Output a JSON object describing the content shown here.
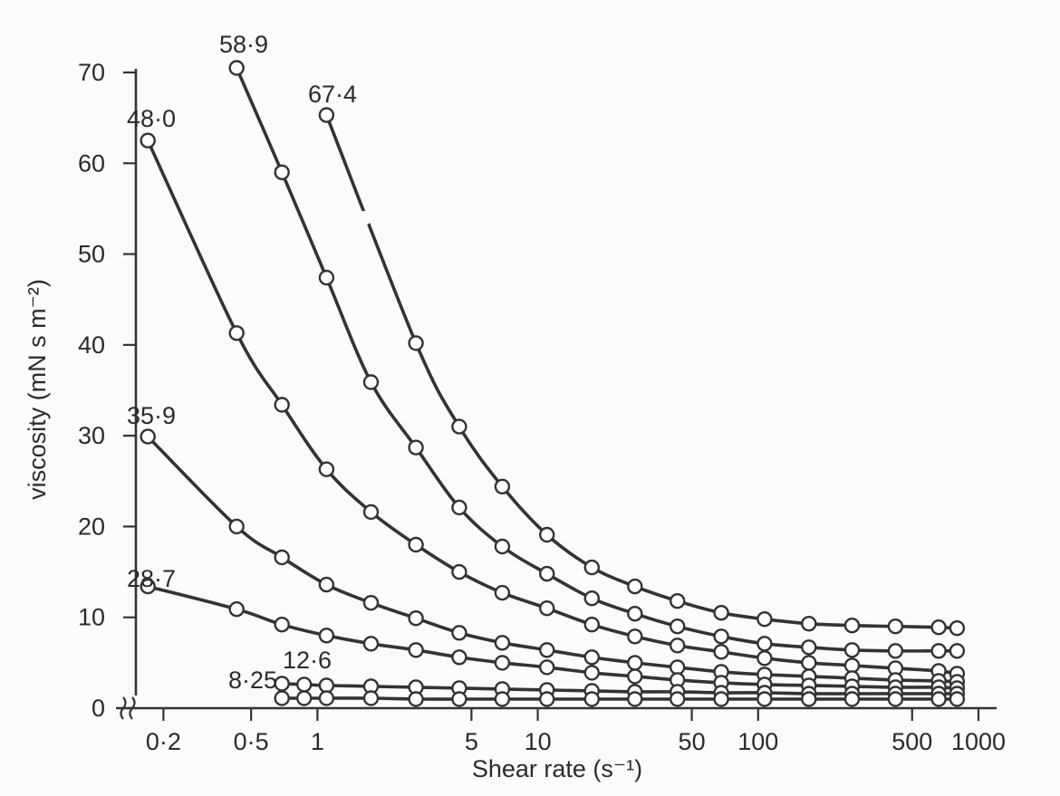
{
  "chart_data": {
    "type": "line",
    "x_scale": "log",
    "xlabel": "Shear rate (s⁻¹)",
    "ylabel": "viscosity (mN s m⁻²)",
    "xlim": [
      0.15,
      1000
    ],
    "ylim": [
      0,
      70
    ],
    "x_ticks": [
      {
        "value": 0.2,
        "label": "0·2"
      },
      {
        "value": 0.5,
        "label": "0·5"
      },
      {
        "value": 1,
        "label": "1"
      },
      {
        "value": 5,
        "label": "5"
      },
      {
        "value": 10,
        "label": "10"
      },
      {
        "value": 50,
        "label": "50"
      },
      {
        "value": 100,
        "label": "100"
      },
      {
        "value": 500,
        "label": "500"
      },
      {
        "value": 1000,
        "label": "1000"
      }
    ],
    "y_ticks": [
      {
        "value": 0,
        "label": "0"
      },
      {
        "value": 10,
        "label": "10"
      },
      {
        "value": 20,
        "label": "20"
      },
      {
        "value": 30,
        "label": "30"
      },
      {
        "value": 40,
        "label": "40"
      },
      {
        "value": 50,
        "label": "50"
      },
      {
        "value": 60,
        "label": "60"
      },
      {
        "value": 70,
        "label": "70"
      }
    ],
    "grid": false,
    "axis_break": "y",
    "series": [
      {
        "name": "67·4",
        "x": [
          1.1,
          2.8,
          4.4,
          6.9,
          11,
          17.6,
          27.6,
          43,
          68,
          107,
          170,
          267,
          420,
          660,
          800
        ],
        "y": [
          65.3,
          40.2,
          31.0,
          24.4,
          19.1,
          15.5,
          13.4,
          11.8,
          10.5,
          9.8,
          9.3,
          9.1,
          9.0,
          8.9,
          8.8
        ],
        "break_segment": 1
      },
      {
        "name": "58·9",
        "x": [
          0.43,
          0.69,
          1.1,
          1.75,
          2.8,
          4.4,
          6.9,
          11,
          17.6,
          27.6,
          43,
          68,
          107,
          170,
          267,
          420,
          660,
          800
        ],
        "y": [
          70.5,
          59.0,
          47.4,
          35.9,
          28.7,
          22.1,
          17.8,
          14.8,
          12.1,
          10.4,
          9.0,
          7.9,
          7.1,
          6.7,
          6.4,
          6.3,
          6.3,
          6.3
        ]
      },
      {
        "name": "48·0",
        "x": [
          0.17,
          0.43,
          0.69,
          1.1,
          1.75,
          2.8,
          4.4,
          6.9,
          11,
          17.6,
          27.6,
          43,
          68,
          107,
          170,
          267,
          420,
          660,
          800
        ],
        "y": [
          62.5,
          41.3,
          33.4,
          26.3,
          21.6,
          18.0,
          15.0,
          12.7,
          11.0,
          9.2,
          7.9,
          6.9,
          6.2,
          5.5,
          5.0,
          4.7,
          4.4,
          4.1,
          3.8
        ]
      },
      {
        "name": "35·9",
        "x": [
          0.17,
          0.43,
          0.69,
          1.1,
          1.75,
          2.8,
          4.4,
          6.9,
          11,
          17.6,
          27.6,
          43,
          68,
          107,
          170,
          267,
          420,
          660,
          800
        ],
        "y": [
          29.9,
          20.0,
          16.6,
          13.6,
          11.6,
          9.9,
          8.3,
          7.2,
          6.4,
          5.6,
          5.0,
          4.5,
          4.0,
          3.7,
          3.5,
          3.3,
          3.1,
          3.0,
          2.9
        ]
      },
      {
        "name": "28·7",
        "x": [
          0.17,
          0.43,
          0.69,
          1.1,
          1.75,
          2.8,
          4.4,
          6.9,
          11,
          17.6,
          27.6,
          43,
          68,
          107,
          170,
          267,
          420,
          660,
          800
        ],
        "y": [
          13.4,
          10.9,
          9.2,
          8.0,
          7.1,
          6.4,
          5.6,
          5.0,
          4.5,
          3.9,
          3.5,
          3.1,
          2.8,
          2.6,
          2.5,
          2.4,
          2.3,
          2.3,
          2.2
        ]
      },
      {
        "name": "12·6",
        "x": [
          0.69,
          0.87,
          1.1,
          1.75,
          2.8,
          4.4,
          6.9,
          11,
          17.6,
          27.6,
          43,
          68,
          107,
          170,
          267,
          420,
          660,
          800
        ],
        "y": [
          2.7,
          2.6,
          2.5,
          2.4,
          2.3,
          2.2,
          2.1,
          2.0,
          1.9,
          1.8,
          1.8,
          1.7,
          1.7,
          1.6,
          1.6,
          1.6,
          1.6,
          1.6
        ]
      },
      {
        "name": "8·25",
        "x": [
          0.69,
          0.87,
          1.1,
          1.75,
          2.8,
          4.4,
          6.9,
          11,
          17.6,
          27.6,
          43,
          68,
          107,
          170,
          267,
          420,
          660,
          800
        ],
        "y": [
          1.1,
          1.1,
          1.1,
          1.1,
          1.0,
          1.0,
          1.0,
          1.0,
          1.0,
          1.0,
          1.0,
          1.0,
          1.0,
          1.0,
          1.0,
          1.0,
          1.0,
          1.0
        ]
      }
    ]
  }
}
